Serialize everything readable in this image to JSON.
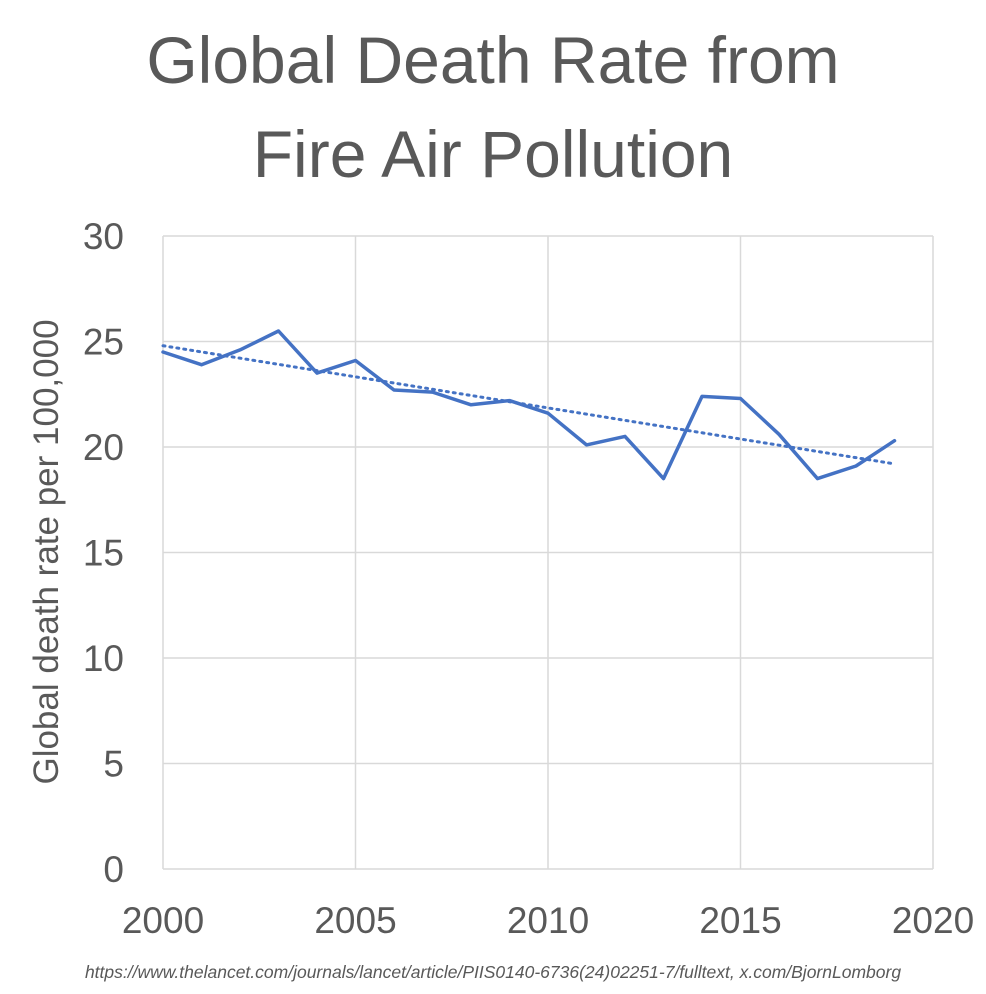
{
  "chart_data": {
    "type": "line",
    "title_lines": [
      "Global Death Rate from",
      "Fire Air Pollution"
    ],
    "ylabel": "Global death rate per 100,000",
    "xlabel": "",
    "xlim": [
      2000,
      2020
    ],
    "ylim": [
      0,
      30
    ],
    "x_ticks": [
      2000,
      2005,
      2010,
      2015,
      2020
    ],
    "y_ticks": [
      0,
      5,
      10,
      15,
      20,
      25,
      30
    ],
    "grid": true,
    "legend": "none",
    "series": [
      {
        "x": [
          2000,
          2001,
          2002,
          2003,
          2004,
          2005,
          2006,
          2007,
          2008,
          2009,
          2010,
          2011,
          2012,
          2013,
          2014,
          2015,
          2016,
          2017,
          2018,
          2019
        ],
        "values": [
          24.5,
          23.9,
          24.6,
          25.5,
          23.5,
          24.1,
          22.7,
          22.6,
          22.0,
          22.2,
          21.6,
          20.1,
          20.5,
          18.5,
          22.4,
          22.3,
          20.6,
          18.5,
          19.1,
          20.3
        ],
        "color": "#4472c4"
      }
    ],
    "trendline": {
      "type": "linear",
      "x": [
        2000,
        2019
      ],
      "values": [
        24.8,
        19.2
      ],
      "style": "dotted",
      "color": "#4472c4"
    }
  },
  "source_text": "https://www.thelancet.com/journals/lancet/article/PIIS0140-6736(24)02251-7/fulltext, x.com/BjornLomborg"
}
